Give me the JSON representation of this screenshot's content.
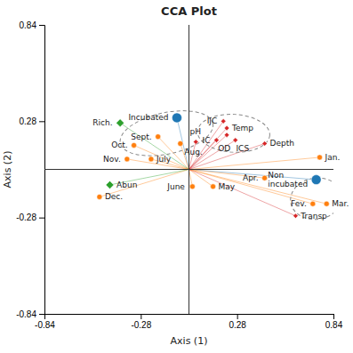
{
  "chart_data": {
    "type": "biplot",
    "title": "CCA Plot",
    "xlabel": "Axis (1)",
    "ylabel": "Axis (2)",
    "xlim": [
      -0.84,
      0.84
    ],
    "ylim": [
      -0.84,
      0.84
    ],
    "xticks": [
      -0.84,
      -0.28,
      0.28,
      0.84
    ],
    "yticks": [
      -0.84,
      -0.28,
      0.28,
      0.84
    ],
    "series": [
      {
        "marker": "large-circle",
        "labels": [
          "Incubated",
          "Non\nincubated"
        ],
        "x": [
          -0.07,
          0.74
        ],
        "values": [
          0.3,
          -0.06
        ]
      },
      {
        "marker": "circle",
        "labels": [
          "Jan.",
          "Fev.",
          "Mar.",
          "Apr.",
          "May",
          "June",
          "July",
          "Aug.",
          "Sept.",
          "Oct.",
          "Nov.",
          "Dec."
        ],
        "x": [
          0.76,
          0.72,
          0.8,
          0.44,
          0.14,
          0.02,
          -0.22,
          -0.05,
          -0.18,
          -0.32,
          -0.36,
          -0.52
        ],
        "values": [
          0.07,
          -0.2,
          -0.2,
          -0.05,
          -0.1,
          -0.1,
          0.06,
          0.15,
          0.19,
          0.14,
          0.06,
          -0.16
        ]
      },
      {
        "marker": "large-diamond",
        "labels": [
          "Rich.",
          "Abun"
        ],
        "x": [
          -0.4,
          -0.46
        ],
        "values": [
          0.27,
          -0.09
        ]
      },
      {
        "marker": "diamond",
        "labels": [
          "IJC",
          "Temp",
          "ICS",
          "IC",
          "OD",
          "Depth",
          "pH",
          "Transp"
        ],
        "x": [
          0.2,
          0.22,
          0.22,
          0.16,
          0.27,
          0.44,
          0.04,
          0.62
        ],
        "values": [
          0.28,
          0.24,
          0.2,
          0.17,
          0.17,
          0.15,
          0.16,
          -0.27
        ]
      }
    ],
    "ellipses": [
      {
        "cx": -0.13,
        "cy": 0.21,
        "width": 0.55,
        "height": 0.24,
        "angle": 12
      },
      {
        "cx": 0.26,
        "cy": 0.21,
        "width": 0.42,
        "height": 0.22,
        "angle": -3
      },
      {
        "cx": 0.74,
        "cy": -0.17,
        "width": 0.3,
        "height": 0.24,
        "angle": 8
      }
    ]
  }
}
